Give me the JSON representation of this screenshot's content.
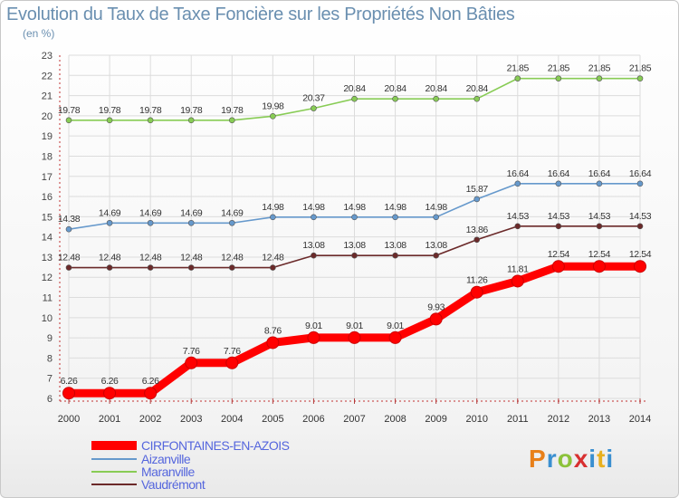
{
  "chart_data": {
    "type": "line",
    "title": "Evolution du Taux de Taxe Foncière sur les Propriétés Non Bâties",
    "subtitle": "(en %)",
    "ylim": [
      6,
      23
    ],
    "yticks": [
      6,
      7,
      8,
      9,
      10,
      11,
      12,
      13,
      14,
      15,
      16,
      17,
      18,
      19,
      20,
      21,
      22,
      23
    ],
    "categories": [
      "2000",
      "2001",
      "2002",
      "2003",
      "2004",
      "2005",
      "2006",
      "2007",
      "2008",
      "2009",
      "2010",
      "2011",
      "2012",
      "2013",
      "2014"
    ],
    "series": [
      {
        "name": "CIRFONTAINES-EN-AZOIS",
        "color": "#ff0000",
        "highlight": true,
        "values": [
          6.26,
          6.26,
          6.26,
          7.76,
          7.76,
          8.76,
          9.01,
          9.01,
          9.01,
          9.93,
          11.26,
          11.81,
          12.54,
          12.54,
          12.54
        ],
        "labels": [
          "6.26",
          "6.26",
          "6.26",
          "7.76",
          "7.76",
          "8.76",
          "9.01",
          "9.01",
          "9.01",
          "9.93",
          "11.26",
          "11.81",
          "12.54",
          "12.54",
          "12.54"
        ]
      },
      {
        "name": "Aizanville",
        "color": "#6699cc",
        "values": [
          14.38,
          14.69,
          14.69,
          14.69,
          14.69,
          14.98,
          14.98,
          14.98,
          14.98,
          14.98,
          15.87,
          16.64,
          16.64,
          16.64,
          16.64
        ],
        "labels": [
          "14.38",
          "14.69",
          "14.69",
          "14.69",
          "14.69",
          "14.98",
          "14.98",
          "14.98",
          "14.98",
          "14.98",
          "15.87",
          "16.64",
          "16.64",
          "16.64",
          "16.64"
        ]
      },
      {
        "name": "Maranville",
        "color": "#88cc55",
        "values": [
          19.78,
          19.78,
          19.78,
          19.78,
          19.78,
          19.98,
          20.37,
          20.84,
          20.84,
          20.84,
          20.84,
          21.85,
          21.85,
          21.85,
          21.85
        ],
        "labels": [
          "19.78",
          "19.78",
          "19.78",
          "19.78",
          "19.78",
          "19.98",
          "20.37",
          "20.84",
          "20.84",
          "20.84",
          "20.84",
          "21.85",
          "21.85",
          "21.85",
          "21.85"
        ]
      },
      {
        "name": "Vaudrémont",
        "color": "#6b2a2a",
        "values": [
          12.48,
          12.48,
          12.48,
          12.48,
          12.48,
          12.48,
          13.08,
          13.08,
          13.08,
          13.08,
          13.86,
          14.53,
          14.53,
          14.53,
          14.53
        ],
        "labels": [
          "12.48",
          "12.48",
          "12.48",
          "12.48",
          "12.48",
          "12.48",
          "13.08",
          "13.08",
          "13.08",
          "13.08",
          "13.86",
          "14.53",
          "14.53",
          "14.53",
          "14.53"
        ]
      }
    ],
    "legend": [
      "CIRFONTAINES-EN-AZOIS",
      "Aizanville",
      "Maranville",
      "Vaudrémont"
    ],
    "legend_position": "bottom-left",
    "grid": true
  },
  "branding": {
    "logo_text": "Proxiti"
  }
}
